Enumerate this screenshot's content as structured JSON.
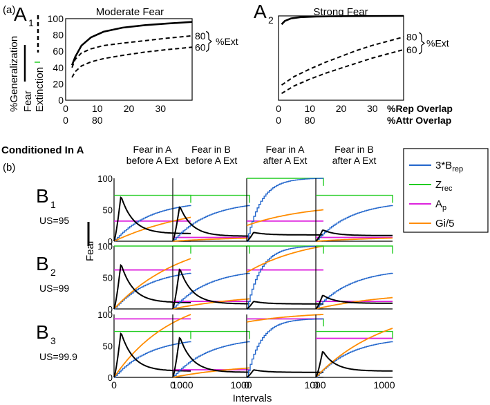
{
  "figure": {
    "label_a": "(a)",
    "label_b": "(b)",
    "conditioned": "Conditioned In A",
    "ext_pct": "%Ext",
    "rep_overlap": "%Rep Overlap",
    "attr_overlap": "%Attr Overlap",
    "vert_generalization": "%Generalization",
    "vert_fear": "Fear",
    "vert_extinction": "Extinction",
    "x_label": "Intervals",
    "y_label": "Fear"
  },
  "chart_data": [
    {
      "id": "A1",
      "type": "line",
      "panel_label": "A",
      "panel_sub": "1",
      "title": "Moderate Fear",
      "yticks": [
        "0",
        "20",
        "40",
        "60",
        "80",
        "100"
      ],
      "xticks_rep": [
        "0",
        "10",
        "20",
        "30"
      ],
      "xticks_attr": [
        "0",
        "80"
      ],
      "ylim": [
        0,
        100
      ],
      "xlim": [
        0,
        40
      ],
      "series": [
        {
          "name": "Fear",
          "style": "solid",
          "label": "",
          "x": [
            2,
            3,
            5,
            8,
            12,
            18,
            25,
            32,
            40
          ],
          "y": [
            43,
            53,
            67,
            77,
            84,
            89,
            92,
            94,
            96
          ]
        },
        {
          "name": "Extinction 80",
          "style": "dashed",
          "label": "80",
          "x": [
            2,
            3,
            5,
            8,
            12,
            18,
            25,
            32,
            40
          ],
          "y": [
            40,
            50,
            58,
            63,
            67,
            70,
            73,
            76,
            79
          ]
        },
        {
          "name": "Extinction 60",
          "style": "dashed",
          "label": "60",
          "x": [
            2,
            3,
            5,
            8,
            12,
            18,
            25,
            32,
            40
          ],
          "y": [
            28,
            35,
            42,
            47,
            51,
            55,
            59,
            62,
            65
          ]
        }
      ]
    },
    {
      "id": "A2",
      "type": "line",
      "panel_label": "A",
      "panel_sub": "2",
      "title": "Strong Fear",
      "xticks_rep": [
        "0",
        "10",
        "20",
        "30"
      ],
      "xticks_attr": [
        "0",
        "80"
      ],
      "ylim": [
        0,
        100
      ],
      "xlim": [
        0,
        40
      ],
      "series": [
        {
          "name": "Fear",
          "style": "solid",
          "label": "",
          "x": [
            1,
            2,
            4,
            7,
            12,
            20,
            40
          ],
          "y": [
            90,
            94,
            97,
            98.5,
            99.3,
            99.7,
            100
          ]
        },
        {
          "name": "Extinction 80",
          "style": "dashed",
          "label": "80",
          "x": [
            1,
            5,
            10,
            15,
            20,
            25,
            30,
            35,
            40
          ],
          "y": [
            18,
            28,
            37,
            45,
            52,
            59,
            65,
            70,
            75
          ]
        },
        {
          "name": "Extinction 60",
          "style": "dashed",
          "label": "60",
          "x": [
            1,
            5,
            10,
            15,
            20,
            25,
            30,
            35,
            40
          ],
          "y": [
            8,
            17,
            25,
            32,
            38,
            44,
            50,
            55,
            60
          ]
        }
      ]
    },
    {
      "id": "B",
      "type": "line",
      "column_titles": [
        {
          "line1": "Fear in A",
          "line2": "before A Ext"
        },
        {
          "line1": "Fear in B",
          "line2": "before A Ext"
        },
        {
          "line1": "Fear in A",
          "line2": "after A Ext"
        },
        {
          "line1": "Fear in B",
          "line2": "after A Ext"
        }
      ],
      "rows": [
        {
          "label": "B",
          "sub": "1",
          "us": "US=95"
        },
        {
          "label": "B",
          "sub": "2",
          "us": "US=99"
        },
        {
          "label": "B",
          "sub": "3",
          "us": "US=99.9"
        }
      ],
      "xlim": [
        0,
        1000
      ],
      "ylim": [
        0,
        100
      ],
      "xticks": [
        "0",
        "1000"
      ],
      "yticks": [
        "0",
        "50",
        "100"
      ],
      "legend": [
        {
          "name": "3*B",
          "sub": "rep",
          "color": "#2266cc"
        },
        {
          "name": "Z",
          "sub": "rec",
          "color": "#22cc22"
        },
        {
          "name": "A",
          "sub": "p",
          "color": "#dd22dd"
        },
        {
          "name": "Gi/5",
          "sub": "",
          "color": "#ff8c00"
        }
      ],
      "colors": {
        "fear": "#000000",
        "brep": "#2266cc",
        "zrec": "#22cc22",
        "ap": "#dd22dd",
        "gi": "#ff8c00"
      },
      "panels": [
        {
          "row": 0,
          "col": 0,
          "zrec": 73,
          "ap": 32,
          "brep_end": 57,
          "brep_k": 2.2,
          "gi_end": 38,
          "gi_k": 0.9,
          "gi_start": 0,
          "fear_peak": 72,
          "fear_end": 12
        },
        {
          "row": 0,
          "col": 1,
          "zrec": 73,
          "ap": 6,
          "brep_end": 57,
          "brep_k": 2.2,
          "gi_end": 5,
          "gi_k": 1.0,
          "gi_start": 0,
          "fear_peak": 56,
          "fear_end": 8
        },
        {
          "row": 0,
          "col": 2,
          "zrec": 100,
          "ap": 32,
          "brep_end": 100,
          "brep_k": 5.5,
          "gi_end": 50,
          "gi_k": 1.2,
          "gi_start": 25,
          "fear_peak": 14,
          "fear_end": 10
        },
        {
          "row": 0,
          "col": 3,
          "zrec": 73,
          "ap": 6,
          "brep_end": 57,
          "brep_k": 2.2,
          "gi_end": 5,
          "gi_k": 1.0,
          "gi_start": 0,
          "fear_peak": 18,
          "fear_end": 9
        },
        {
          "row": 1,
          "col": 0,
          "zrec": 100,
          "ap": 62,
          "brep_end": 57,
          "brep_k": 2.2,
          "gi_end": 80,
          "gi_k": 1.1,
          "gi_start": 0,
          "fear_peak": 72,
          "fear_end": 10
        },
        {
          "row": 1,
          "col": 1,
          "zrec": 100,
          "ap": 12,
          "brep_end": 57,
          "brep_k": 2.2,
          "gi_end": 16,
          "gi_k": 1.0,
          "gi_start": 0,
          "fear_peak": 65,
          "fear_end": 8
        },
        {
          "row": 1,
          "col": 2,
          "zrec": 100,
          "ap": 62,
          "brep_end": 100,
          "brep_k": 5.5,
          "gi_end": 100,
          "gi_k": 1.2,
          "gi_start": 58,
          "fear_peak": 12,
          "fear_end": 8
        },
        {
          "row": 1,
          "col": 3,
          "zrec": 100,
          "ap": 12,
          "brep_end": 57,
          "brep_k": 2.2,
          "gi_end": 18,
          "gi_k": 1.0,
          "gi_start": 0,
          "fear_peak": 22,
          "fear_end": 9
        },
        {
          "row": 2,
          "col": 0,
          "zrec": 73,
          "ap": 93,
          "brep_end": 57,
          "brep_k": 2.2,
          "gi_end": 100,
          "gi_k": 1.3,
          "gi_start": 0,
          "fear_peak": 72,
          "fear_end": 10
        },
        {
          "row": 2,
          "col": 1,
          "zrec": 73,
          "ap": 12,
          "brep_end": 57,
          "brep_k": 2.2,
          "gi_end": 15,
          "gi_k": 1.0,
          "gi_start": 0,
          "fear_peak": 65,
          "fear_end": 8
        },
        {
          "row": 2,
          "col": 2,
          "zrec": 93,
          "ap": 93,
          "brep_end": 93,
          "brep_k": 5.5,
          "gi_end": 100,
          "gi_k": 1.3,
          "gi_start": 88,
          "fear_peak": 12,
          "fear_end": 8
        },
        {
          "row": 2,
          "col": 3,
          "zrec": 73,
          "ap": 62,
          "brep_end": 57,
          "brep_k": 2.2,
          "gi_end": 78,
          "gi_k": 1.1,
          "gi_start": 0,
          "fear_peak": 42,
          "fear_end": 10
        }
      ]
    }
  ]
}
